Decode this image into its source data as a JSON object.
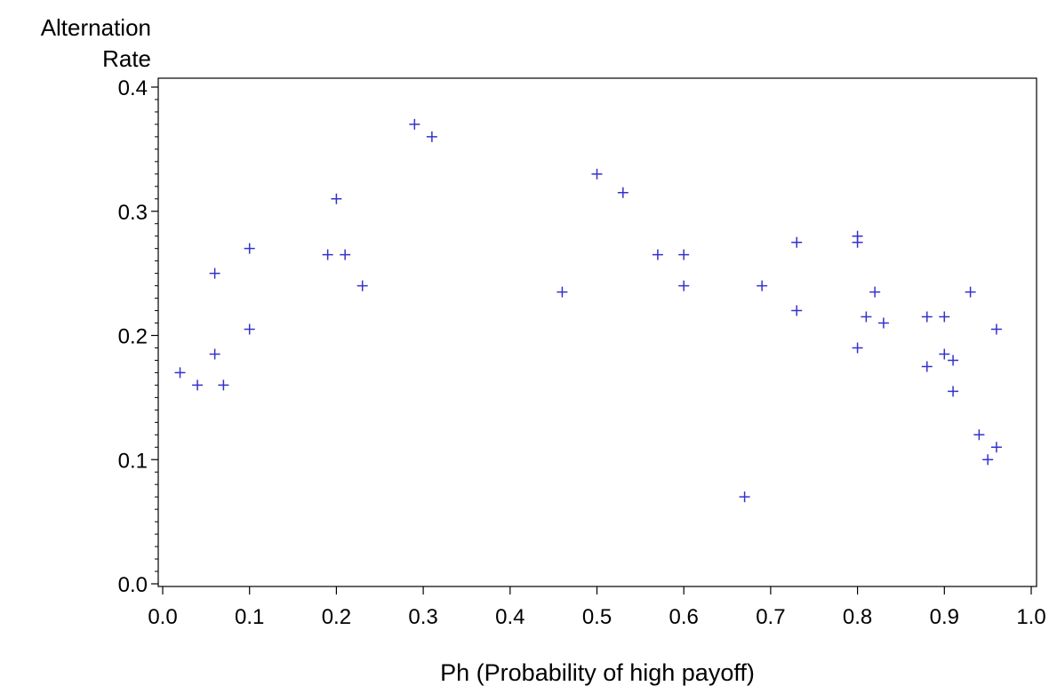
{
  "chart_data": {
    "type": "scatter",
    "ylabel_line1": "Alternation",
    "ylabel_line2": "Rate",
    "xlabel": "Ph (Probability of high payoff)",
    "xlim": [
      0.0,
      1.0
    ],
    "ylim": [
      0.0,
      0.4
    ],
    "x_ticks": [
      "0.0",
      "0.1",
      "0.2",
      "0.3",
      "0.4",
      "0.5",
      "0.6",
      "0.7",
      "0.8",
      "0.9",
      "1.0"
    ],
    "y_ticks": [
      "0.0",
      "0.1",
      "0.2",
      "0.3",
      "0.4"
    ],
    "grid": false,
    "marker": "plus",
    "marker_color": "#3333cc",
    "points": [
      {
        "x": 0.02,
        "y": 0.17
      },
      {
        "x": 0.04,
        "y": 0.16
      },
      {
        "x": 0.06,
        "y": 0.25
      },
      {
        "x": 0.06,
        "y": 0.185
      },
      {
        "x": 0.07,
        "y": 0.16
      },
      {
        "x": 0.1,
        "y": 0.27
      },
      {
        "x": 0.1,
        "y": 0.205
      },
      {
        "x": 0.19,
        "y": 0.265
      },
      {
        "x": 0.2,
        "y": 0.31
      },
      {
        "x": 0.21,
        "y": 0.265
      },
      {
        "x": 0.23,
        "y": 0.24
      },
      {
        "x": 0.29,
        "y": 0.37
      },
      {
        "x": 0.31,
        "y": 0.36
      },
      {
        "x": 0.46,
        "y": 0.235
      },
      {
        "x": 0.5,
        "y": 0.33
      },
      {
        "x": 0.53,
        "y": 0.315
      },
      {
        "x": 0.57,
        "y": 0.265
      },
      {
        "x": 0.6,
        "y": 0.265
      },
      {
        "x": 0.6,
        "y": 0.24
      },
      {
        "x": 0.67,
        "y": 0.07
      },
      {
        "x": 0.69,
        "y": 0.24
      },
      {
        "x": 0.73,
        "y": 0.275
      },
      {
        "x": 0.73,
        "y": 0.22
      },
      {
        "x": 0.8,
        "y": 0.28
      },
      {
        "x": 0.8,
        "y": 0.275
      },
      {
        "x": 0.8,
        "y": 0.19
      },
      {
        "x": 0.81,
        "y": 0.215
      },
      {
        "x": 0.82,
        "y": 0.235
      },
      {
        "x": 0.83,
        "y": 0.21
      },
      {
        "x": 0.88,
        "y": 0.215
      },
      {
        "x": 0.88,
        "y": 0.175
      },
      {
        "x": 0.9,
        "y": 0.215
      },
      {
        "x": 0.9,
        "y": 0.185
      },
      {
        "x": 0.91,
        "y": 0.18
      },
      {
        "x": 0.91,
        "y": 0.155
      },
      {
        "x": 0.93,
        "y": 0.235
      },
      {
        "x": 0.94,
        "y": 0.12
      },
      {
        "x": 0.95,
        "y": 0.1
      },
      {
        "x": 0.96,
        "y": 0.205
      },
      {
        "x": 0.96,
        "y": 0.11
      }
    ]
  }
}
